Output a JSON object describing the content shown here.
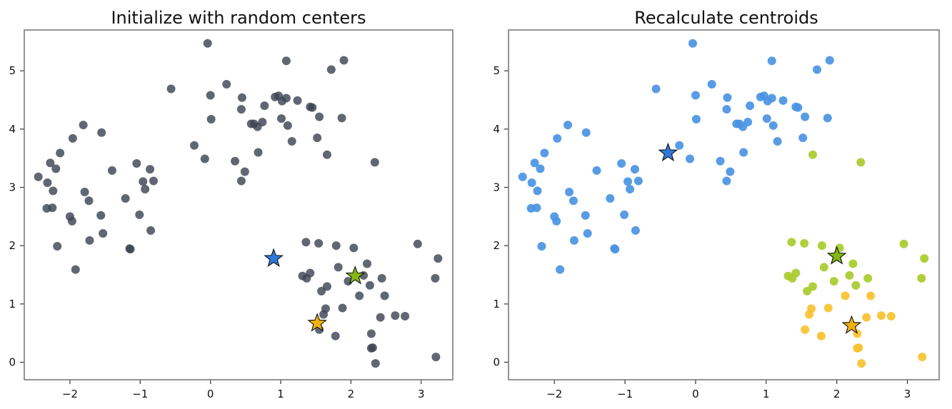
{
  "chart_data": [
    {
      "type": "scatter",
      "title": "Initialize with random centers",
      "xlabel": "",
      "ylabel": "",
      "xlim": [
        -2.65,
        3.45
      ],
      "ylim": [
        -0.3,
        5.7
      ],
      "xticks": [
        -2,
        -1,
        0,
        1,
        2,
        3
      ],
      "xtick_labels": [
        "−2",
        "−1",
        "0",
        "1",
        "2",
        "3"
      ],
      "yticks": [
        0,
        1,
        2,
        3,
        4,
        5
      ],
      "ytick_labels": [
        "0",
        "1",
        "2",
        "3",
        "4",
        "5"
      ],
      "grid": false,
      "legend": "none",
      "point_color": "#3d4653",
      "points": [
        [
          -2.45,
          3.18
        ],
        [
          -2.32,
          3.08
        ],
        [
          -2.33,
          2.64
        ],
        [
          -2.25,
          2.65
        ],
        [
          -2.28,
          3.42
        ],
        [
          -2.2,
          3.32
        ],
        [
          -2.24,
          2.94
        ],
        [
          -2.14,
          3.59
        ],
        [
          -2.18,
          1.99
        ],
        [
          -2.0,
          2.5
        ],
        [
          -1.97,
          2.42
        ],
        [
          -1.96,
          3.84
        ],
        [
          -1.92,
          1.59
        ],
        [
          -1.81,
          4.07
        ],
        [
          -1.79,
          2.92
        ],
        [
          -1.73,
          2.77
        ],
        [
          -1.72,
          2.09
        ],
        [
          -1.56,
          2.52
        ],
        [
          -1.55,
          3.94
        ],
        [
          -1.53,
          2.21
        ],
        [
          -1.4,
          3.29
        ],
        [
          -1.21,
          2.81
        ],
        [
          -1.15,
          1.95
        ],
        [
          -1.14,
          1.94
        ],
        [
          -1.05,
          3.41
        ],
        [
          -1.01,
          2.53
        ],
        [
          -0.96,
          3.1
        ],
        [
          -0.93,
          2.97
        ],
        [
          -0.86,
          3.31
        ],
        [
          -0.85,
          2.26
        ],
        [
          -0.81,
          3.11
        ],
        [
          -0.56,
          4.69
        ],
        [
          -0.23,
          3.72
        ],
        [
          -0.08,
          3.49
        ],
        [
          -0.04,
          5.47
        ],
        [
          0.0,
          4.58
        ],
        [
          0.01,
          4.17
        ],
        [
          0.23,
          4.77
        ],
        [
          0.35,
          3.45
        ],
        [
          0.44,
          3.11
        ],
        [
          0.45,
          4.54
        ],
        [
          0.44,
          4.34
        ],
        [
          0.49,
          3.27
        ],
        [
          0.58,
          4.09
        ],
        [
          0.62,
          4.09
        ],
        [
          0.67,
          4.04
        ],
        [
          0.68,
          3.6
        ],
        [
          0.74,
          4.12
        ],
        [
          0.77,
          4.4
        ],
        [
          0.92,
          4.55
        ],
        [
          0.97,
          4.57
        ],
        [
          1.01,
          4.18
        ],
        [
          1.02,
          4.48
        ],
        [
          1.08,
          5.17
        ],
        [
          1.08,
          4.53
        ],
        [
          1.1,
          4.06
        ],
        [
          1.16,
          3.79
        ],
        [
          1.24,
          4.49
        ],
        [
          1.36,
          2.06
        ],
        [
          1.31,
          1.48
        ],
        [
          1.37,
          1.44
        ],
        [
          1.42,
          1.53
        ],
        [
          1.42,
          4.38
        ],
        [
          1.45,
          4.37
        ],
        [
          1.52,
          3.85
        ],
        [
          1.55,
          4.21
        ],
        [
          1.54,
          2.04
        ],
        [
          1.55,
          0.56
        ],
        [
          1.58,
          1.22
        ],
        [
          1.61,
          0.82
        ],
        [
          1.64,
          0.92
        ],
        [
          1.66,
          3.56
        ],
        [
          1.66,
          1.3
        ],
        [
          1.72,
          5.02
        ],
        [
          1.78,
          0.45
        ],
        [
          1.79,
          2.0
        ],
        [
          1.82,
          1.63
        ],
        [
          1.87,
          4.19
        ],
        [
          1.88,
          0.93
        ],
        [
          1.9,
          5.18
        ],
        [
          1.96,
          1.39
        ],
        [
          2.04,
          1.96
        ],
        [
          2.12,
          1.14
        ],
        [
          2.18,
          1.49
        ],
        [
          2.23,
          1.69
        ],
        [
          2.27,
          1.32
        ],
        [
          2.29,
          0.49
        ],
        [
          2.29,
          0.24
        ],
        [
          2.31,
          0.25
        ],
        [
          2.34,
          3.43
        ],
        [
          2.35,
          -0.02
        ],
        [
          2.42,
          0.77
        ],
        [
          2.44,
          1.44
        ],
        [
          2.48,
          1.14
        ],
        [
          2.63,
          0.8
        ],
        [
          2.77,
          0.79
        ],
        [
          2.95,
          2.03
        ],
        [
          3.2,
          1.44
        ],
        [
          3.24,
          1.78
        ],
        [
          3.21,
          0.09
        ]
      ],
      "centers": [
        {
          "x": 0.9,
          "y": 1.78,
          "color": "#2f7ad9"
        },
        {
          "x": 2.06,
          "y": 1.48,
          "color": "#82b714"
        },
        {
          "x": 1.52,
          "y": 0.67,
          "color": "#f2b10c"
        }
      ]
    },
    {
      "type": "scatter",
      "title": "Recalculate centroids",
      "xlabel": "",
      "ylabel": "",
      "xlim": [
        -2.65,
        3.45
      ],
      "ylim": [
        -0.3,
        5.7
      ],
      "xticks": [
        -2,
        -1,
        0,
        1,
        2,
        3
      ],
      "xtick_labels": [
        "−2",
        "−1",
        "0",
        "1",
        "2",
        "3"
      ],
      "yticks": [
        0,
        1,
        2,
        3,
        4,
        5
      ],
      "ytick_labels": [
        "0",
        "1",
        "2",
        "3",
        "4",
        "5"
      ],
      "grid": false,
      "legend": "none",
      "point_colors": {
        "blue": "#4a94e3",
        "green": "#a8cc2b",
        "yellow": "#f7c22f"
      },
      "points": [
        [
          -2.45,
          3.18,
          "blue"
        ],
        [
          -2.32,
          3.08,
          "blue"
        ],
        [
          -2.33,
          2.64,
          "blue"
        ],
        [
          -2.25,
          2.65,
          "blue"
        ],
        [
          -2.28,
          3.42,
          "blue"
        ],
        [
          -2.2,
          3.32,
          "blue"
        ],
        [
          -2.24,
          2.94,
          "blue"
        ],
        [
          -2.14,
          3.59,
          "blue"
        ],
        [
          -2.18,
          1.99,
          "blue"
        ],
        [
          -2.0,
          2.5,
          "blue"
        ],
        [
          -1.97,
          2.42,
          "blue"
        ],
        [
          -1.96,
          3.84,
          "blue"
        ],
        [
          -1.92,
          1.59,
          "blue"
        ],
        [
          -1.81,
          4.07,
          "blue"
        ],
        [
          -1.79,
          2.92,
          "blue"
        ],
        [
          -1.73,
          2.77,
          "blue"
        ],
        [
          -1.72,
          2.09,
          "blue"
        ],
        [
          -1.56,
          2.52,
          "blue"
        ],
        [
          -1.55,
          3.94,
          "blue"
        ],
        [
          -1.53,
          2.21,
          "blue"
        ],
        [
          -1.4,
          3.29,
          "blue"
        ],
        [
          -1.21,
          2.81,
          "blue"
        ],
        [
          -1.15,
          1.95,
          "blue"
        ],
        [
          -1.14,
          1.94,
          "blue"
        ],
        [
          -1.05,
          3.41,
          "blue"
        ],
        [
          -1.01,
          2.53,
          "blue"
        ],
        [
          -0.96,
          3.1,
          "blue"
        ],
        [
          -0.93,
          2.97,
          "blue"
        ],
        [
          -0.86,
          3.31,
          "blue"
        ],
        [
          -0.85,
          2.26,
          "blue"
        ],
        [
          -0.81,
          3.11,
          "blue"
        ],
        [
          -0.56,
          4.69,
          "blue"
        ],
        [
          -0.23,
          3.72,
          "blue"
        ],
        [
          -0.08,
          3.49,
          "blue"
        ],
        [
          -0.04,
          5.47,
          "blue"
        ],
        [
          0.0,
          4.58,
          "blue"
        ],
        [
          0.01,
          4.17,
          "blue"
        ],
        [
          0.23,
          4.77,
          "blue"
        ],
        [
          0.35,
          3.45,
          "blue"
        ],
        [
          0.44,
          3.11,
          "blue"
        ],
        [
          0.45,
          4.54,
          "blue"
        ],
        [
          0.44,
          4.34,
          "blue"
        ],
        [
          0.49,
          3.27,
          "blue"
        ],
        [
          0.58,
          4.09,
          "blue"
        ],
        [
          0.62,
          4.09,
          "blue"
        ],
        [
          0.67,
          4.04,
          "blue"
        ],
        [
          0.68,
          3.6,
          "blue"
        ],
        [
          0.74,
          4.12,
          "blue"
        ],
        [
          0.77,
          4.4,
          "blue"
        ],
        [
          0.92,
          4.55,
          "blue"
        ],
        [
          0.97,
          4.57,
          "blue"
        ],
        [
          1.01,
          4.18,
          "blue"
        ],
        [
          1.02,
          4.48,
          "blue"
        ],
        [
          1.08,
          5.17,
          "blue"
        ],
        [
          1.08,
          4.53,
          "blue"
        ],
        [
          1.1,
          4.06,
          "blue"
        ],
        [
          1.16,
          3.79,
          "blue"
        ],
        [
          1.24,
          4.49,
          "blue"
        ],
        [
          1.36,
          2.06,
          "green"
        ],
        [
          1.31,
          1.48,
          "green"
        ],
        [
          1.37,
          1.44,
          "green"
        ],
        [
          1.42,
          1.53,
          "green"
        ],
        [
          1.42,
          4.38,
          "blue"
        ],
        [
          1.45,
          4.37,
          "blue"
        ],
        [
          1.52,
          3.85,
          "blue"
        ],
        [
          1.55,
          4.21,
          "blue"
        ],
        [
          1.54,
          2.04,
          "green"
        ],
        [
          1.55,
          0.56,
          "yellow"
        ],
        [
          1.58,
          1.22,
          "green"
        ],
        [
          1.61,
          0.82,
          "yellow"
        ],
        [
          1.64,
          0.92,
          "yellow"
        ],
        [
          1.66,
          3.56,
          "green"
        ],
        [
          1.66,
          1.3,
          "green"
        ],
        [
          1.72,
          5.02,
          "blue"
        ],
        [
          1.78,
          0.45,
          "yellow"
        ],
        [
          1.79,
          2.0,
          "green"
        ],
        [
          1.82,
          1.63,
          "green"
        ],
        [
          1.87,
          4.19,
          "blue"
        ],
        [
          1.88,
          0.93,
          "yellow"
        ],
        [
          1.9,
          5.18,
          "blue"
        ],
        [
          1.96,
          1.39,
          "green"
        ],
        [
          2.04,
          1.96,
          "green"
        ],
        [
          2.12,
          1.14,
          "yellow"
        ],
        [
          2.18,
          1.49,
          "green"
        ],
        [
          2.23,
          1.69,
          "green"
        ],
        [
          2.27,
          1.32,
          "green"
        ],
        [
          2.29,
          0.49,
          "yellow"
        ],
        [
          2.29,
          0.24,
          "yellow"
        ],
        [
          2.31,
          0.25,
          "yellow"
        ],
        [
          2.34,
          3.43,
          "green"
        ],
        [
          2.35,
          -0.02,
          "yellow"
        ],
        [
          2.42,
          0.77,
          "yellow"
        ],
        [
          2.44,
          1.44,
          "green"
        ],
        [
          2.48,
          1.14,
          "yellow"
        ],
        [
          2.63,
          0.8,
          "yellow"
        ],
        [
          2.77,
          0.79,
          "yellow"
        ],
        [
          2.95,
          2.03,
          "green"
        ],
        [
          3.2,
          1.44,
          "green"
        ],
        [
          3.24,
          1.78,
          "green"
        ],
        [
          3.21,
          0.09,
          "yellow"
        ]
      ],
      "centers": [
        {
          "x": -0.39,
          "y": 3.59,
          "color": "#2f7ad9"
        },
        {
          "x": 2.0,
          "y": 1.82,
          "color": "#82b714"
        },
        {
          "x": 2.21,
          "y": 0.63,
          "color": "#f2b10c"
        }
      ]
    }
  ]
}
